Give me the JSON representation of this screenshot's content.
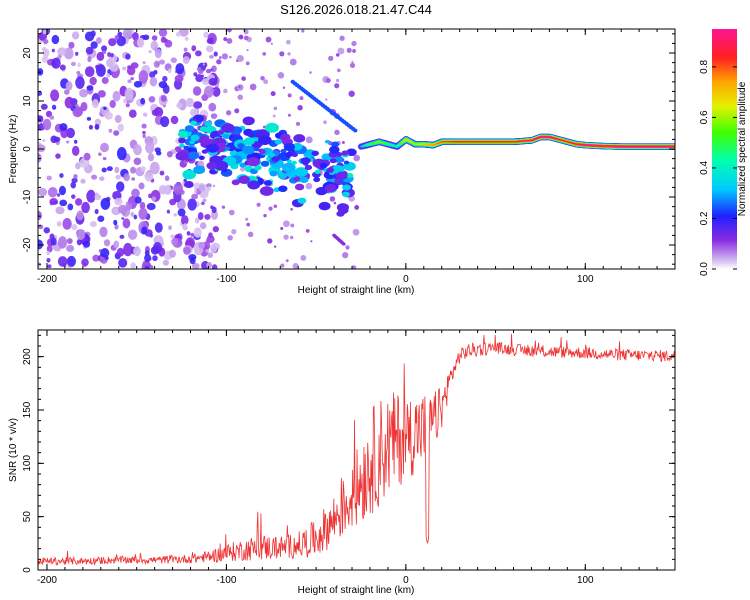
{
  "title": "S126.2026.018.21.47.C44",
  "chart_data": [
    {
      "type": "heatmap",
      "name": "spectrogram",
      "xlabel": "Height of straight line (km)",
      "ylabel": "Frequency (Hz)",
      "xlim": [
        -205,
        150
      ],
      "ylim": [
        -25,
        25
      ],
      "xticks": [
        -200,
        -100,
        0,
        100
      ],
      "yticks": [
        -20,
        -10,
        0,
        10,
        20
      ],
      "colorbar": {
        "label": "Normalized spectral amplitude",
        "range": [
          0.0,
          0.95
        ],
        "ticks": [
          0.0,
          0.2,
          0.4,
          0.6,
          0.8
        ],
        "colormap": "rainbow"
      },
      "features": {
        "noise_region_x": [
          -205,
          -115
        ],
        "scatter_region_x": [
          -125,
          -30
        ],
        "ridge": {
          "x": [
            -25,
            -20,
            -15,
            -10,
            -5,
            0,
            5,
            10,
            15,
            20,
            30,
            40,
            50,
            60,
            70,
            75,
            80,
            85,
            90,
            95,
            100,
            110,
            120,
            130,
            140,
            150
          ],
          "freq": [
            0.5,
            1.0,
            1.5,
            1.0,
            0.5,
            2.0,
            1.0,
            1.0,
            0.8,
            1.5,
            1.5,
            1.5,
            1.5,
            1.5,
            1.8,
            2.5,
            2.5,
            2.0,
            1.5,
            1.0,
            0.8,
            0.6,
            0.5,
            0.5,
            0.5,
            0.5
          ],
          "amplitude": [
            0.3,
            0.5,
            0.6,
            0.5,
            0.4,
            0.7,
            0.6,
            0.7,
            0.75,
            0.8,
            0.85,
            0.85,
            0.85,
            0.85,
            0.9,
            0.95,
            0.95,
            0.9,
            0.85,
            0.9,
            0.95,
            0.95,
            0.95,
            0.95,
            0.95,
            0.95
          ]
        }
      }
    },
    {
      "type": "line",
      "name": "snr",
      "xlabel": "Height of straight line (km)",
      "ylabel": "SNR (10 * v/v)",
      "xlim": [
        -205,
        150
      ],
      "ylim": [
        0,
        225
      ],
      "xticks": [
        -200,
        -100,
        0,
        100
      ],
      "yticks": [
        0,
        50,
        100,
        150,
        200
      ],
      "color": "#ee3333",
      "series": [
        {
          "name": "SNR",
          "x": [
            -205,
            -180,
            -160,
            -140,
            -120,
            -110,
            -100,
            -90,
            -80,
            -70,
            -60,
            -50,
            -40,
            -30,
            -25,
            -20,
            -15,
            -10,
            -5,
            0,
            5,
            10,
            15,
            20,
            25,
            30,
            35,
            40,
            50,
            60,
            80,
            100,
            120,
            150
          ],
          "y": [
            8,
            8,
            9,
            9,
            10,
            12,
            15,
            18,
            20,
            20,
            22,
            28,
            45,
            65,
            80,
            95,
            105,
            112,
            118,
            120,
            125,
            130,
            135,
            150,
            180,
            200,
            205,
            206,
            208,
            206,
            204,
            203,
            201,
            200
          ],
          "noise": [
            5,
            5,
            5,
            5,
            6,
            8,
            12,
            15,
            18,
            15,
            18,
            25,
            35,
            45,
            60,
            70,
            75,
            70,
            65,
            60,
            55,
            50,
            40,
            30,
            15,
            10,
            10,
            10,
            8,
            8,
            8,
            8,
            8,
            8
          ]
        }
      ]
    }
  ]
}
